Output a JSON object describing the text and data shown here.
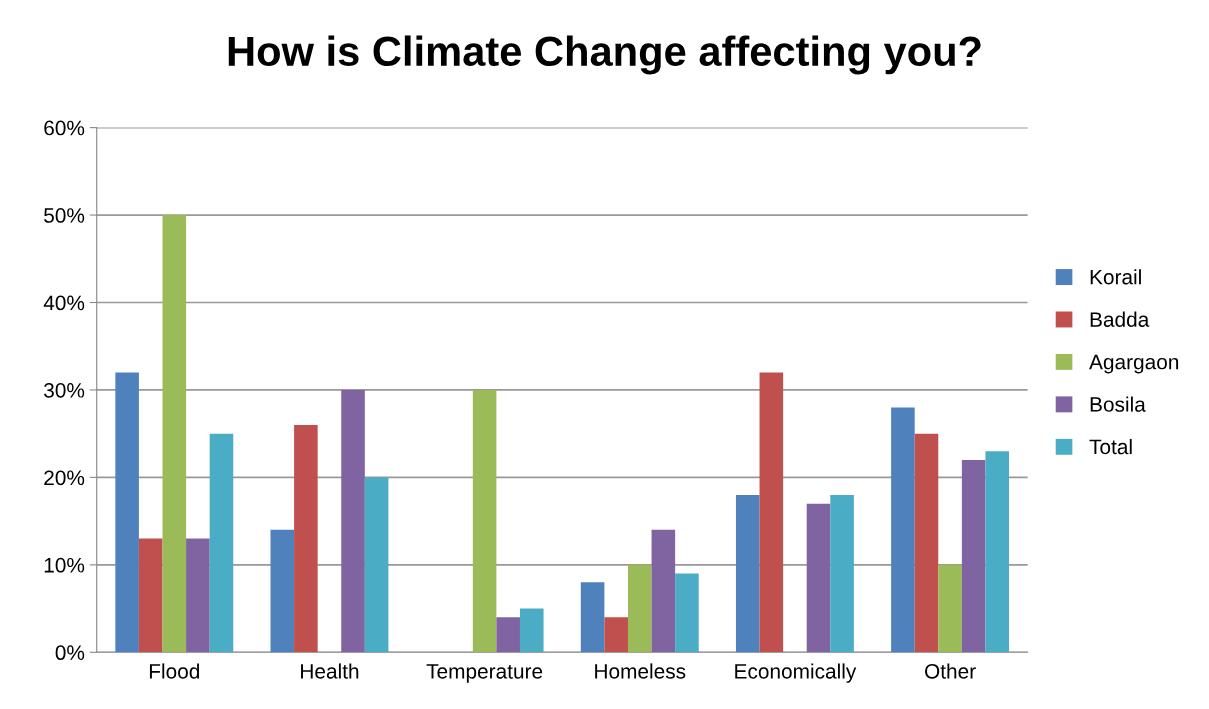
{
  "chart_data": {
    "type": "bar",
    "title": "How is Climate Change affecting you?",
    "categories": [
      "Flood",
      "Health",
      "Temperature",
      "Homeless",
      "Economically",
      "Other"
    ],
    "series": [
      {
        "name": "Korail",
        "color": "#4f81bd",
        "values": [
          32,
          14,
          0,
          8,
          18,
          28
        ]
      },
      {
        "name": "Badda",
        "color": "#c0504d",
        "values": [
          13,
          26,
          0,
          4,
          32,
          25
        ]
      },
      {
        "name": "Agargaon",
        "color": "#9bbb59",
        "values": [
          50,
          0,
          30,
          10,
          0,
          10
        ]
      },
      {
        "name": "Bosila",
        "color": "#8064a2",
        "values": [
          13,
          30,
          4,
          14,
          17,
          22
        ]
      },
      {
        "name": "Total",
        "color": "#4bacc6",
        "values": [
          25,
          20,
          5,
          9,
          18,
          23
        ]
      }
    ],
    "ylim": [
      0,
      60
    ],
    "yticks": [
      {
        "value": 0,
        "label": "0%"
      },
      {
        "value": 10,
        "label": "10%"
      },
      {
        "value": 20,
        "label": "20%"
      },
      {
        "value": 30,
        "label": "30%"
      },
      {
        "value": 40,
        "label": "40%"
      },
      {
        "value": 50,
        "label": "50%"
      },
      {
        "value": 60,
        "label": "60%"
      }
    ],
    "grid": "y",
    "legend": "right"
  }
}
